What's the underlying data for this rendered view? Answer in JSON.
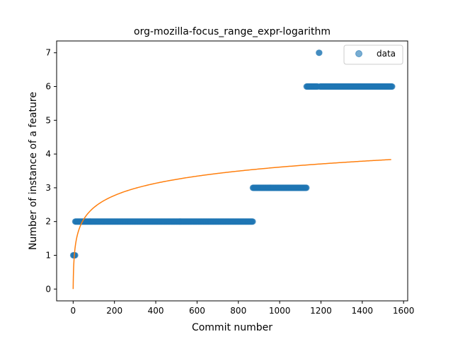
{
  "chart_data": {
    "type": "scatter",
    "title": "org-mozilla-focus_range_expr-logarithm",
    "xlabel": "Commit number",
    "ylabel": "Number of instance of a feature",
    "xlim": [
      -80,
      1620
    ],
    "ylim": [
      -0.35,
      7.35
    ],
    "xticks": [
      0,
      200,
      400,
      600,
      800,
      1000,
      1200,
      1400,
      1600
    ],
    "yticks": [
      0,
      1,
      2,
      3,
      4,
      5,
      6,
      7
    ],
    "grid": false,
    "legend": {
      "position": "top-right",
      "entries": [
        "data"
      ]
    },
    "colors": {
      "data": "#1f77b4",
      "fit": "#ff7f0e"
    },
    "series": [
      {
        "name": "data",
        "kind": "scatter",
        "segments": [
          {
            "x_start": 0,
            "x_end": 10,
            "y": 1
          },
          {
            "x_start": 10,
            "x_end": 870,
            "y": 2
          },
          {
            "x_start": 870,
            "x_end": 1130,
            "y": 3
          },
          {
            "x_start": 1130,
            "x_end": 1185,
            "y": 6
          },
          {
            "x_start": 1190,
            "x_end": 1192,
            "y": 7
          },
          {
            "x_start": 1195,
            "x_end": 1545,
            "y": 6
          }
        ]
      },
      {
        "kind": "line",
        "model": "y = a * ln(x + 1)",
        "a": 0.5228,
        "x_range": [
          0,
          1540
        ]
      }
    ]
  }
}
